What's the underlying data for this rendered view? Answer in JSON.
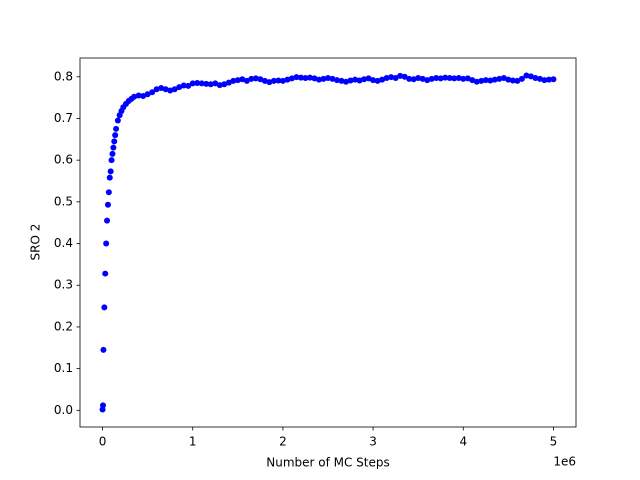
{
  "chart_data": {
    "type": "scatter",
    "xlabel": "Number of MC Steps",
    "ylabel": "SRO 2",
    "x_offset_label": "1e6",
    "color": "#0000ff",
    "xlim": [
      -250000,
      5250000
    ],
    "xticks": [
      0,
      {
        "value": 1000000,
        "label": "1"
      },
      {
        "value": 2000000,
        "label": "2"
      },
      {
        "value": 3000000,
        "label": "3"
      },
      {
        "value": 4000000,
        "label": "4"
      },
      {
        "value": 5000000,
        "label": "5"
      }
    ],
    "ylim": [
      -0.04,
      0.845
    ],
    "yticks": [
      {
        "value": 0,
        "label": "0.0"
      },
      0.1,
      0.2,
      0.3,
      0.4,
      0.5,
      0.6,
      0.7,
      0.8
    ],
    "x": [
      0,
      5000,
      10000,
      20000,
      30000,
      40000,
      50000,
      60000,
      70000,
      80000,
      90000,
      100000,
      110000,
      120000,
      130000,
      140000,
      150000,
      170000,
      190000,
      210000,
      230000,
      260000,
      290000,
      320000,
      350000,
      400000,
      450000,
      500000,
      550000,
      600000,
      650000,
      700000,
      750000,
      800000,
      850000,
      900000,
      950000,
      1000000,
      1050000,
      1100000,
      1150000,
      1200000,
      1250000,
      1300000,
      1350000,
      1400000,
      1450000,
      1500000,
      1550000,
      1600000,
      1650000,
      1700000,
      1750000,
      1800000,
      1850000,
      1900000,
      1950000,
      2000000,
      2050000,
      2100000,
      2150000,
      2200000,
      2250000,
      2300000,
      2350000,
      2400000,
      2450000,
      2500000,
      2550000,
      2600000,
      2650000,
      2700000,
      2750000,
      2800000,
      2850000,
      2900000,
      2950000,
      3000000,
      3050000,
      3100000,
      3150000,
      3200000,
      3250000,
      3300000,
      3350000,
      3400000,
      3450000,
      3500000,
      3550000,
      3600000,
      3650000,
      3700000,
      3750000,
      3800000,
      3850000,
      3900000,
      3950000,
      4000000,
      4050000,
      4100000,
      4150000,
      4200000,
      4250000,
      4300000,
      4350000,
      4400000,
      4450000,
      4500000,
      4550000,
      4600000,
      4650000,
      4700000,
      4750000,
      4800000,
      4850000,
      4900000,
      4950000,
      5000000
    ],
    "values": [
      0.002,
      0.012,
      0.145,
      0.247,
      0.328,
      0.4,
      0.455,
      0.493,
      0.523,
      0.558,
      0.573,
      0.6,
      0.615,
      0.63,
      0.645,
      0.66,
      0.675,
      0.695,
      0.708,
      0.718,
      0.727,
      0.735,
      0.742,
      0.747,
      0.752,
      0.755,
      0.754,
      0.758,
      0.763,
      0.77,
      0.773,
      0.77,
      0.767,
      0.77,
      0.775,
      0.779,
      0.778,
      0.784,
      0.785,
      0.784,
      0.783,
      0.782,
      0.784,
      0.78,
      0.782,
      0.786,
      0.79,
      0.792,
      0.794,
      0.79,
      0.795,
      0.796,
      0.794,
      0.79,
      0.787,
      0.79,
      0.791,
      0.79,
      0.793,
      0.796,
      0.799,
      0.798,
      0.797,
      0.798,
      0.796,
      0.793,
      0.795,
      0.797,
      0.795,
      0.792,
      0.79,
      0.788,
      0.791,
      0.793,
      0.791,
      0.794,
      0.796,
      0.792,
      0.79,
      0.793,
      0.797,
      0.799,
      0.797,
      0.802,
      0.8,
      0.795,
      0.794,
      0.797,
      0.795,
      0.792,
      0.795,
      0.797,
      0.796,
      0.798,
      0.797,
      0.796,
      0.797,
      0.795,
      0.796,
      0.792,
      0.788,
      0.79,
      0.792,
      0.791,
      0.793,
      0.795,
      0.797,
      0.793,
      0.791,
      0.79,
      0.795,
      0.803,
      0.801,
      0.797,
      0.795,
      0.792,
      0.793,
      0.794
    ]
  }
}
